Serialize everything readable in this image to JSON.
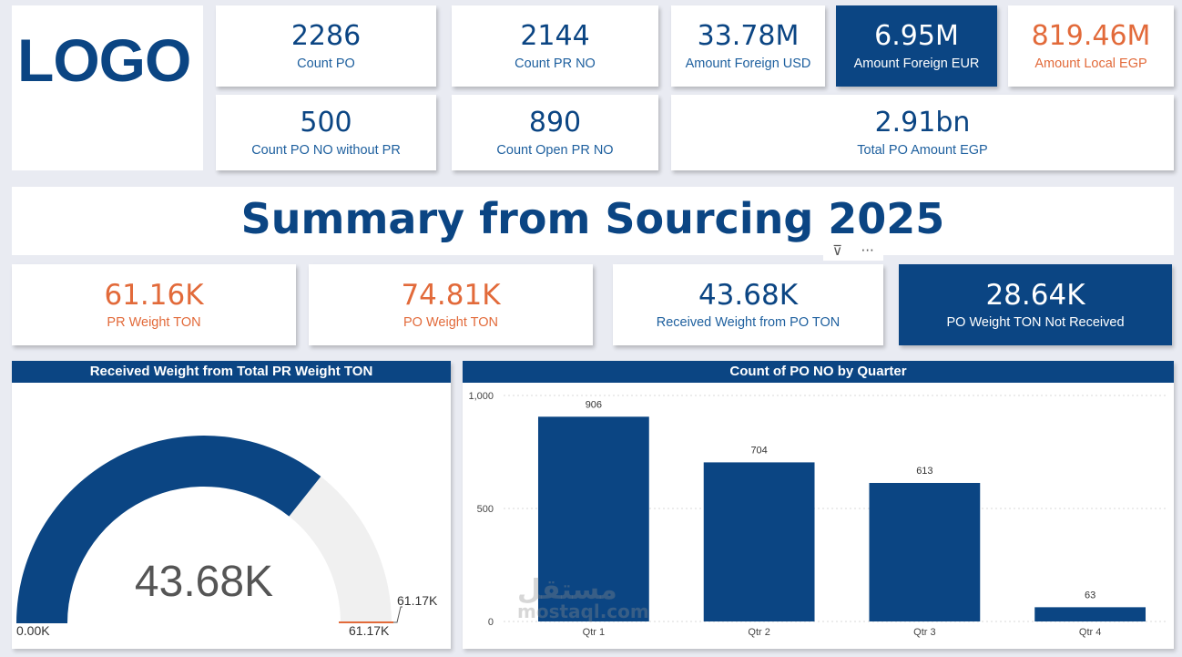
{
  "logo": {
    "text": "LOGO"
  },
  "kpis_top": [
    {
      "value": "2286",
      "label": "Count PO"
    },
    {
      "value": "2144",
      "label": "Count PR NO"
    },
    {
      "value": "33.78M",
      "label": "Amount Foreign USD"
    },
    {
      "value": "6.95M",
      "label": "Amount Foreign EUR"
    },
    {
      "value": "819.46M",
      "label": "Amount Local EGP"
    },
    {
      "value": "500",
      "label": "Count PO NO without PR"
    },
    {
      "value": "890",
      "label": "Count Open PR NO"
    },
    {
      "value": "2.91bn",
      "label": "Total PO Amount EGP"
    }
  ],
  "title": "Summary from Sourcing 2025",
  "visual_header": {
    "filter_icon": "filter-icon",
    "more_icon": "more-options-icon",
    "filter_glyph": "⊽",
    "more_glyph": "···"
  },
  "kpis_weight": [
    {
      "value": "61.16K",
      "label": "PR Weight TON"
    },
    {
      "value": "74.81K",
      "label": "PO Weight TON"
    },
    {
      "value": "43.68K",
      "label": "Received Weight from PO TON"
    },
    {
      "value": "28.64K",
      "label": "PO Weight TON Not Received"
    }
  ],
  "colors": {
    "primary": "#0b4583",
    "accent": "#e26a3a",
    "gauge_track": "#f0f0f0"
  },
  "watermark": {
    "text": "مستقل",
    "sub": "mostaql.com"
  },
  "chart_data": [
    {
      "type": "gauge",
      "title": "Received Weight from Total PR Weight TON",
      "value": 43680,
      "value_label": "43.68K",
      "min": 0,
      "max": 61170,
      "min_label": "0.00K",
      "max_label": "61.17K",
      "target": 61170,
      "target_label": "61.17K"
    },
    {
      "type": "bar",
      "title": "Count of PO NO by Quarter",
      "categories": [
        "Qtr 1",
        "Qtr 2",
        "Qtr 3",
        "Qtr 4"
      ],
      "values": [
        906,
        704,
        613,
        63
      ],
      "data_labels": [
        "906",
        "704",
        "613",
        "63"
      ],
      "ylim": [
        0,
        1000
      ],
      "yticks": [
        0,
        500,
        1000
      ],
      "ytick_labels": [
        "0",
        "500",
        "1,000"
      ],
      "grid": true,
      "xlabel": "",
      "ylabel": ""
    }
  ]
}
